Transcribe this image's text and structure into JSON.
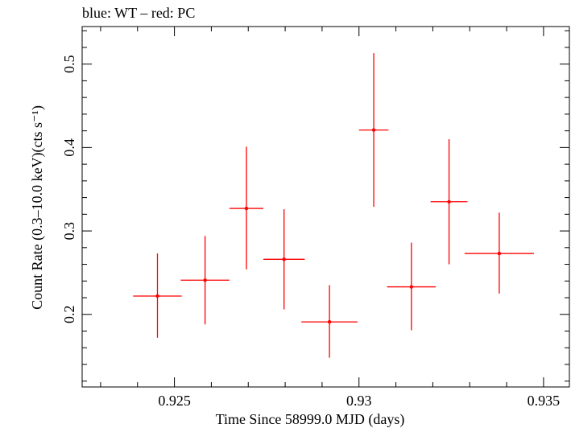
{
  "chart_data": {
    "type": "scatter",
    "title": "blue: WT – red: PC",
    "xlabel": "Time Since 58999.0 MJD (days)",
    "ylabel": "Count Rate (0.3–10.0 keV)(cts s⁻¹)",
    "xlim": [
      0.9225,
      0.9357
    ],
    "ylim": [
      0.113,
      0.545
    ],
    "x_ticks": [
      {
        "value": 0.925,
        "label": "0.925"
      },
      {
        "value": 0.93,
        "label": "0.93"
      },
      {
        "value": 0.935,
        "label": "0.935"
      }
    ],
    "y_ticks": [
      {
        "value": 0.2,
        "label": "0.2"
      },
      {
        "value": 0.3,
        "label": "0.3"
      },
      {
        "value": 0.4,
        "label": "0.4"
      },
      {
        "value": 0.5,
        "label": "0.5"
      }
    ],
    "grid": false,
    "series": [
      {
        "name": "PC",
        "color": "#ff0000",
        "points": [
          {
            "x": 0.92454,
            "xerr": 0.00066,
            "y": 0.222,
            "yerr_low": 0.05,
            "yerr_high": 0.051
          },
          {
            "x": 0.92583,
            "xerr": 0.00066,
            "y": 0.241,
            "yerr_low": 0.053,
            "yerr_high": 0.053
          },
          {
            "x": 0.92695,
            "xerr": 0.00046,
            "y": 0.327,
            "yerr_low": 0.073,
            "yerr_high": 0.074
          },
          {
            "x": 0.92797,
            "xerr": 0.00056,
            "y": 0.266,
            "yerr_low": 0.06,
            "yerr_high": 0.06
          },
          {
            "x": 0.9292,
            "xerr": 0.00076,
            "y": 0.191,
            "yerr_low": 0.043,
            "yerr_high": 0.044
          },
          {
            "x": 0.9304,
            "xerr": 0.0004,
            "y": 0.421,
            "yerr_low": 0.092,
            "yerr_high": 0.092
          },
          {
            "x": 0.93142,
            "xerr": 0.00066,
            "y": 0.233,
            "yerr_low": 0.052,
            "yerr_high": 0.053
          },
          {
            "x": 0.93244,
            "xerr": 0.0005,
            "y": 0.335,
            "yerr_low": 0.075,
            "yerr_high": 0.075
          },
          {
            "x": 0.9338,
            "xerr": 0.00094,
            "y": 0.273,
            "yerr_low": 0.048,
            "yerr_high": 0.049
          }
        ]
      }
    ]
  }
}
